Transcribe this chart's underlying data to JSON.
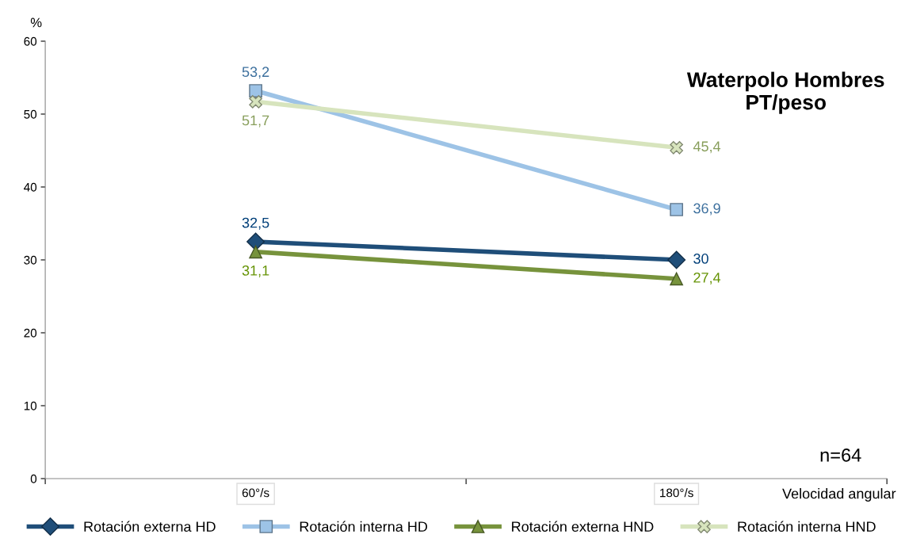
{
  "chart_data": {
    "type": "line",
    "title": "Waterpolo Hombres\nPT/peso",
    "xlabel": "Velocidad angular",
    "ylabel": "%",
    "categories": [
      "60°/s",
      "180°/s"
    ],
    "series": [
      {
        "name": "Rotación externa HD",
        "color": "#1f4e79",
        "marker": "diamond",
        "values": [
          32.5,
          30
        ],
        "value_labels": [
          "32,5",
          "30"
        ]
      },
      {
        "name": "Rotación interna HD",
        "color": "#9dc3e6",
        "marker": "square",
        "values": [
          53.2,
          36.9
        ],
        "value_labels": [
          "53,2",
          "36,9"
        ]
      },
      {
        "name": "Rotación externa HND",
        "color": "#77933c",
        "marker": "triangle",
        "values": [
          31.1,
          27.4
        ],
        "value_labels": [
          "31,1",
          "27,4"
        ]
      },
      {
        "name": "Rotación interna HND",
        "color": "#d7e4bd",
        "marker": "cross",
        "values": [
          51.7,
          45.4
        ],
        "value_labels": [
          "51,7",
          "45,4"
        ]
      }
    ],
    "ylim": [
      0,
      60
    ],
    "yticks": [
      0,
      10,
      20,
      30,
      40,
      50,
      60
    ],
    "annotations": [
      "n=64"
    ],
    "legend": "bottom",
    "grid": false
  }
}
